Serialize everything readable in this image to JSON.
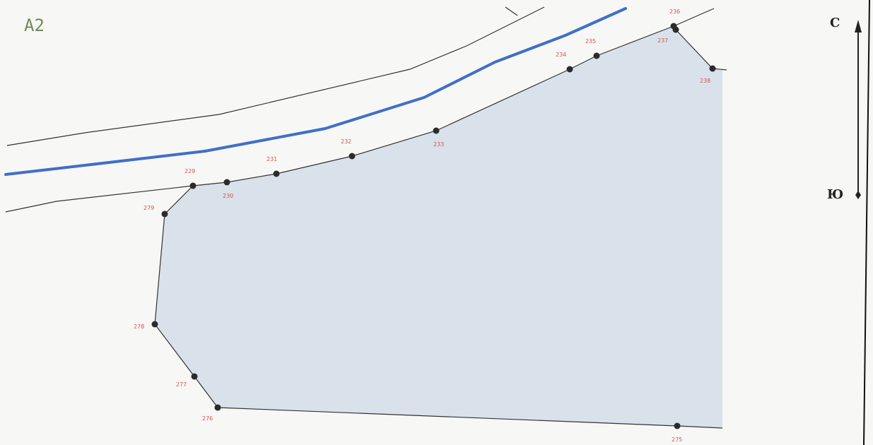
{
  "sheet": {
    "label": "A2"
  },
  "compass": {
    "north": "С",
    "south": "Ю"
  },
  "parcel_points": [
    {
      "id": "229",
      "label": "229"
    },
    {
      "id": "230",
      "label": "230"
    },
    {
      "id": "231",
      "label": "231"
    },
    {
      "id": "232",
      "label": "232"
    },
    {
      "id": "233",
      "label": "233"
    },
    {
      "id": "234",
      "label": "234"
    },
    {
      "id": "235",
      "label": "235"
    },
    {
      "id": "236",
      "label": "236"
    },
    {
      "id": "237",
      "label": "237"
    },
    {
      "id": "238",
      "label": "238"
    },
    {
      "id": "275",
      "label": "275"
    },
    {
      "id": "276",
      "label": "276"
    },
    {
      "id": "277",
      "label": "277"
    },
    {
      "id": "278",
      "label": "278"
    },
    {
      "id": "279",
      "label": "279"
    }
  ],
  "colors": {
    "parcel_fill": "#d9e1ea",
    "boundary": "#3a3a3a",
    "river": "#3f6fc9",
    "point": "#2b2b2b",
    "point_label": "#d9534f",
    "background": "#f7f7f5"
  }
}
